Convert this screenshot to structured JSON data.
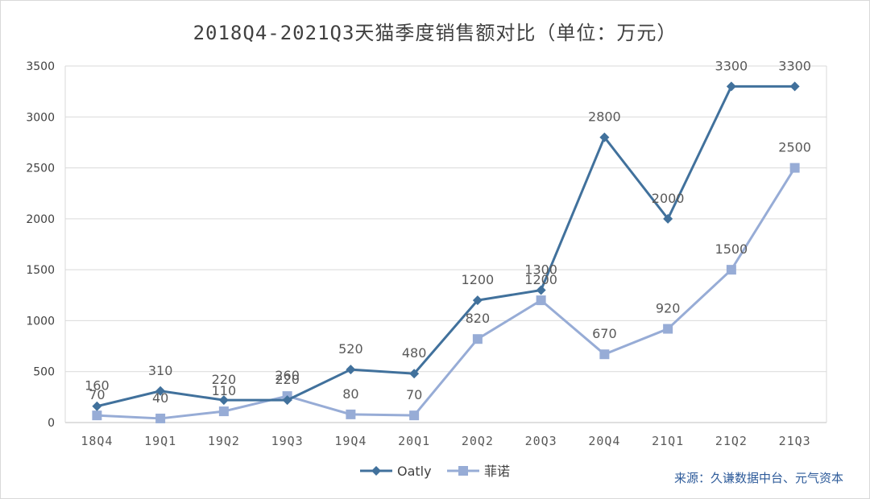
{
  "chart_data": {
    "type": "line",
    "title": "2018Q4-2021Q3天猫季度销售额对比（单位：万元）",
    "categories": [
      "18Q4",
      "19Q1",
      "19Q2",
      "19Q3",
      "19Q4",
      "20Q1",
      "20Q2",
      "20Q3",
      "20Q4",
      "21Q1",
      "21Q2",
      "21Q3"
    ],
    "series": [
      {
        "name": "Oatly",
        "values": [
          160,
          310,
          220,
          220,
          520,
          480,
          1200,
          1300,
          2800,
          2000,
          3300,
          3300
        ],
        "color": "#41719c",
        "marker": "diamond"
      },
      {
        "name": "菲诺",
        "values": [
          70,
          40,
          110,
          260,
          80,
          70,
          820,
          1200,
          670,
          920,
          1500,
          2500
        ],
        "color": "#97acd6",
        "marker": "square"
      }
    ],
    "yticks": [
      0,
      500,
      1000,
      1500,
      2000,
      2500,
      3000,
      3500
    ],
    "ylim": [
      0,
      3500
    ],
    "grid": true,
    "legend_position": "bottom",
    "source": "来源：久谦数据中台、元气资本"
  }
}
